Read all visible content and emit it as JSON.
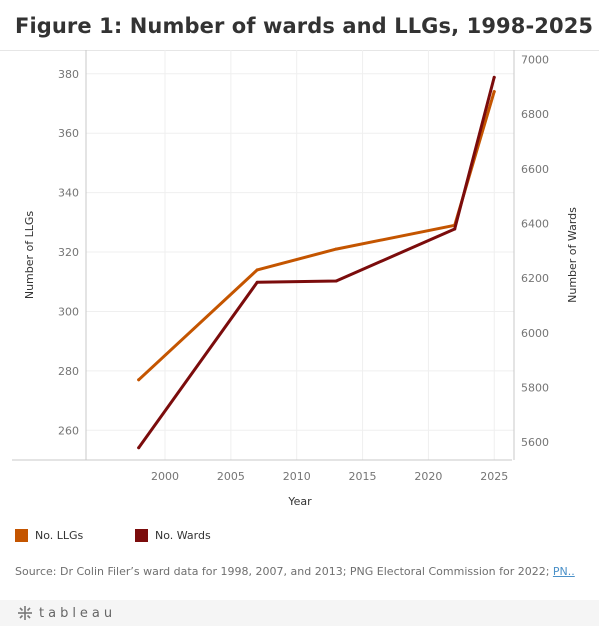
{
  "title": "Figure 1: Number of wards and LLGs, 1998-2025",
  "chart_data": {
    "type": "line",
    "title": "Figure 1: Number of wards and LLGs, 1998-2025",
    "xlabel": "Year",
    "ylabel_left": "Number of LLGs",
    "ylabel_right": "Number of Wards",
    "x": [
      1998,
      2007,
      2013,
      2022,
      2025
    ],
    "xlim": [
      1994,
      2026.5
    ],
    "xticks": [
      2000,
      2005,
      2010,
      2015,
      2020,
      2025
    ],
    "ylim_left": [
      250,
      388
    ],
    "yticks_left": [
      260,
      280,
      300,
      320,
      340,
      360,
      380
    ],
    "ylim_right": [
      5535,
      7035
    ],
    "yticks_right": [
      5600,
      5800,
      6000,
      6200,
      6400,
      6600,
      6800,
      7000
    ],
    "series": [
      {
        "name": "No. LLGs",
        "axis": "left",
        "color": "#c45500",
        "values": [
          277,
          314,
          321,
          329,
          374
        ]
      },
      {
        "name": "No. Wards",
        "axis": "right",
        "color": "#7b0c0c",
        "values": [
          5580,
          6185,
          6190,
          6380,
          6935
        ]
      }
    ],
    "grid": true,
    "legend_position": "bottom-left"
  },
  "legend": [
    {
      "label": "No. LLGs",
      "color": "#c45500"
    },
    {
      "label": "No. Wards",
      "color": "#7b0c0c"
    }
  ],
  "source_text": "Source: Dr Colin Filer’s ward data for 1998, 2007, and 2013; PNG Electoral Commission for 2022; ",
  "source_link": "PN..",
  "footer_brand": "tableau",
  "footer_icon": "tableau-cross-logo-icon"
}
